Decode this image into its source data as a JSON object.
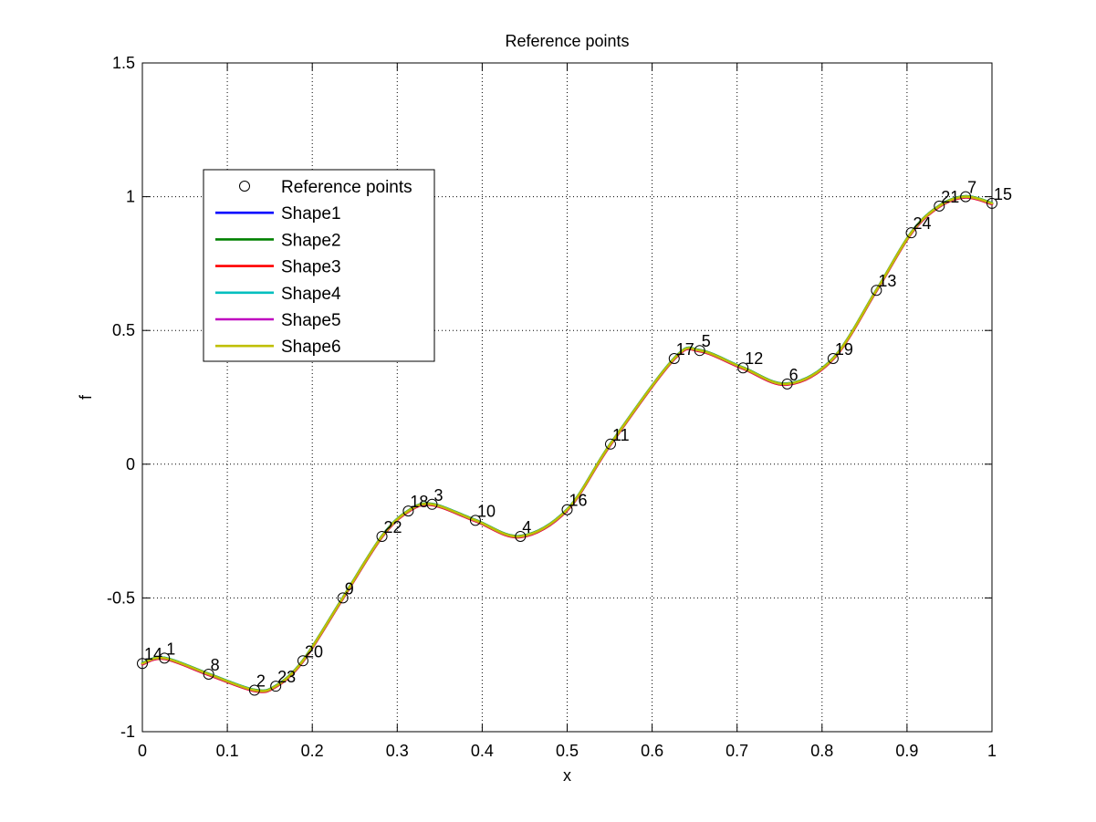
{
  "chart_data": {
    "type": "line",
    "title": "Reference points",
    "xlabel": "x",
    "ylabel": "f",
    "xlim": [
      0,
      1
    ],
    "ylim": [
      -1,
      1.5
    ],
    "xticks": [
      0,
      0.1,
      0.2,
      0.3,
      0.4,
      0.5,
      0.6,
      0.7,
      0.8,
      0.9,
      1
    ],
    "xtick_labels": [
      "0",
      "0.1",
      "0.2",
      "0.3",
      "0.4",
      "0.5",
      "0.6",
      "0.7",
      "0.8",
      "0.9",
      "1"
    ],
    "yticks": [
      -1,
      -0.5,
      0,
      0.5,
      1,
      1.5
    ],
    "ytick_labels": [
      "-1",
      "-0.5",
      "0",
      "0.5",
      "1",
      "1.5"
    ],
    "grid": true,
    "grid_style": "dotted",
    "legend_placement": "upper-left",
    "reference_points": {
      "name": "Reference points",
      "marker": "open-circle",
      "points": [
        {
          "label": "14",
          "x": 0.0,
          "y": -0.745
        },
        {
          "label": "1",
          "x": 0.026,
          "y": -0.725
        },
        {
          "label": "8",
          "x": 0.078,
          "y": -0.785
        },
        {
          "label": "2",
          "x": 0.132,
          "y": -0.845
        },
        {
          "label": "23",
          "x": 0.157,
          "y": -0.83
        },
        {
          "label": "20",
          "x": 0.189,
          "y": -0.735
        },
        {
          "label": "9",
          "x": 0.236,
          "y": -0.5
        },
        {
          "label": "22",
          "x": 0.282,
          "y": -0.27
        },
        {
          "label": "18",
          "x": 0.313,
          "y": -0.175
        },
        {
          "label": "3",
          "x": 0.341,
          "y": -0.15
        },
        {
          "label": "10",
          "x": 0.392,
          "y": -0.21
        },
        {
          "label": "4",
          "x": 0.445,
          "y": -0.27
        },
        {
          "label": "16",
          "x": 0.5,
          "y": -0.17
        },
        {
          "label": "11",
          "x": 0.551,
          "y": 0.075
        },
        {
          "label": "17",
          "x": 0.626,
          "y": 0.395
        },
        {
          "label": "5",
          "x": 0.656,
          "y": 0.425
        },
        {
          "label": "12",
          "x": 0.707,
          "y": 0.36
        },
        {
          "label": "6",
          "x": 0.759,
          "y": 0.3
        },
        {
          "label": "19",
          "x": 0.813,
          "y": 0.395
        },
        {
          "label": "13",
          "x": 0.864,
          "y": 0.65
        },
        {
          "label": "24",
          "x": 0.905,
          "y": 0.865
        },
        {
          "label": "21",
          "x": 0.938,
          "y": 0.965
        },
        {
          "label": "7",
          "x": 0.969,
          "y": 1.0
        },
        {
          "label": "15",
          "x": 1.0,
          "y": 0.975
        }
      ]
    },
    "series": [
      {
        "name": "Shape1",
        "color": "#0000ff"
      },
      {
        "name": "Shape2",
        "color": "#008000"
      },
      {
        "name": "Shape3",
        "color": "#ff0000"
      },
      {
        "name": "Shape4",
        "color": "#00bfbf"
      },
      {
        "name": "Shape5",
        "color": "#bf00bf"
      },
      {
        "name": "Shape6",
        "color": "#bfbf00"
      }
    ]
  }
}
